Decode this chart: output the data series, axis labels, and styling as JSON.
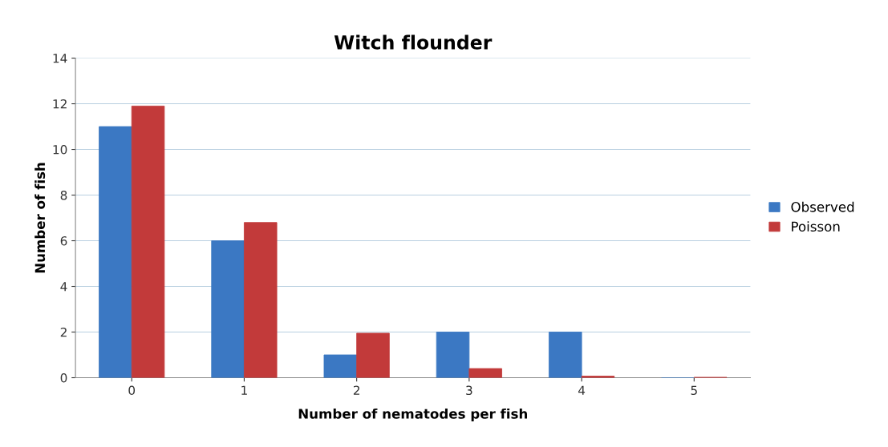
{
  "chart_data": {
    "type": "bar",
    "title": "Witch flounder",
    "xlabel": "Number of nematodes per fish",
    "ylabel": "Number of fish",
    "categories": [
      "0",
      "1",
      "2",
      "3",
      "4",
      "5"
    ],
    "series": [
      {
        "name": "Observed",
        "color": "#3b78c3",
        "values": [
          11,
          6,
          1,
          2,
          2,
          0
        ]
      },
      {
        "name": "Poisson",
        "color": "#c23a3a",
        "values": [
          11.9,
          6.8,
          1.95,
          0.4,
          0.07,
          0.02
        ]
      }
    ],
    "ylim": [
      0,
      14
    ],
    "yticks": [
      0,
      2,
      4,
      6,
      8,
      10,
      12,
      14
    ],
    "grid": "y",
    "legend": "right"
  }
}
